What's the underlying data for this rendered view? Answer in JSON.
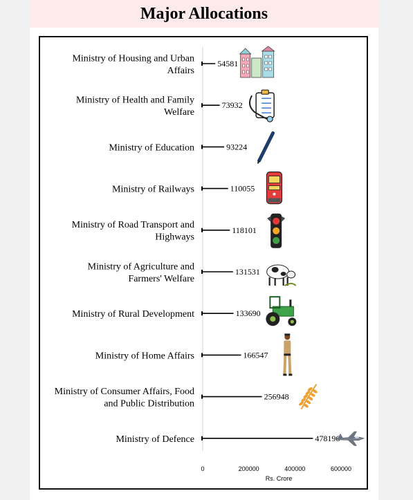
{
  "title": "Major Allocations",
  "colors": {
    "title_bg": "#fdeaea",
    "bar": "#000000",
    "axis": "#d0d0d0"
  },
  "chart_data": {
    "type": "bar",
    "orientation": "horizontal",
    "title": "Major Allocations",
    "xlabel": "Rs. Crore",
    "ylabel": "",
    "xlim": [
      0,
      700000
    ],
    "xticks": [
      "0",
      "200000",
      "400000",
      "600000"
    ],
    "categories": [
      [
        "Ministry of Housing and Urban",
        "Affairs"
      ],
      [
        "Ministry of Health and Family",
        "Welfare"
      ],
      [
        "Ministry of Education"
      ],
      [
        "Ministry of Railways"
      ],
      [
        "Ministry of Road Transport and",
        "Highways"
      ],
      [
        "Ministry of Agriculture and",
        "Farmers' Welfare"
      ],
      [
        "Ministry of Rural Development"
      ],
      [
        "Ministry of Home Affairs"
      ],
      [
        "Ministry of Consumer Affairs, Food",
        "and Public Distribution"
      ],
      [
        "Ministry of Defence"
      ]
    ],
    "values": [
      54581,
      73932,
      93224,
      110055,
      118101,
      131531,
      133690,
      166547,
      256948,
      478196
    ],
    "icons": [
      "buildings-icon",
      "clipboard-stethoscope-icon",
      "pen-icon",
      "train-icon",
      "traffic-light-icon",
      "cow-icon",
      "tractor-icon",
      "police-officer-icon",
      "wheat-icon",
      "fighter-jet-icon"
    ],
    "grid": false
  }
}
